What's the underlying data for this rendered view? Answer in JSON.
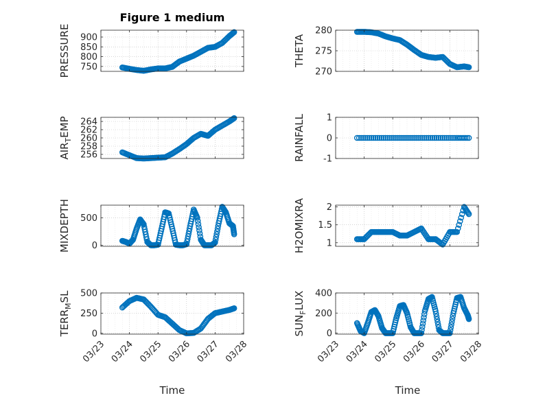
{
  "figure_title": "Figure 1 medium",
  "xlabel": "Time",
  "x_ticks": [
    "03/23",
    "03/24",
    "03/25",
    "03/26",
    "03/27",
    "03/28"
  ],
  "colors": {
    "marker": "#0072BD",
    "axis": "#262626",
    "grid": "#b9b9b9"
  },
  "chart_data": [
    {
      "type": "scatter",
      "ylabel": "PRESSURE",
      "title": "Figure 1 medium",
      "ylim": [
        725,
        935
      ],
      "yticks": [
        750,
        800,
        850,
        900
      ],
      "grid": true,
      "x": [
        "03/23 18:00",
        "03/24 00:00",
        "03/24 06:00",
        "03/24 12:00",
        "03/24 18:00",
        "03/25 00:00",
        "03/25 06:00",
        "03/25 12:00",
        "03/25 18:00",
        "03/26 00:00",
        "03/26 06:00",
        "03/26 12:00",
        "03/26 18:00",
        "03/27 00:00",
        "03/27 06:00",
        "03/27 12:00",
        "03/27 16:00"
      ],
      "y": [
        745,
        738,
        732,
        728,
        735,
        740,
        740,
        748,
        775,
        790,
        805,
        825,
        845,
        850,
        870,
        905,
        925
      ]
    },
    {
      "type": "scatter",
      "ylabel": "THETA",
      "ylim": [
        270,
        280
      ],
      "yticks": [
        270,
        275,
        280
      ],
      "grid": true,
      "x": [
        "03/23 18:00",
        "03/24 00:00",
        "03/24 06:00",
        "03/24 12:00",
        "03/24 18:00",
        "03/25 00:00",
        "03/25 06:00",
        "03/25 12:00",
        "03/25 18:00",
        "03/26 00:00",
        "03/26 06:00",
        "03/26 12:00",
        "03/26 18:00",
        "03/27 00:00",
        "03/27 06:00",
        "03/27 12:00",
        "03/27 16:00"
      ],
      "y": [
        279.6,
        279.6,
        279.5,
        279.2,
        278.5,
        278.0,
        277.6,
        276.5,
        275.2,
        274.0,
        273.5,
        273.3,
        273.5,
        271.8,
        271.0,
        271.2,
        271.0
      ]
    },
    {
      "type": "scatter",
      "ylabel": "AIR_TEMP",
      "ylim": [
        255,
        265
      ],
      "yticks": [
        256,
        258,
        260,
        262,
        264
      ],
      "grid": true,
      "x": [
        "03/23 18:00",
        "03/24 00:00",
        "03/24 06:00",
        "03/24 12:00",
        "03/24 18:00",
        "03/25 00:00",
        "03/25 06:00",
        "03/25 12:00",
        "03/25 18:00",
        "03/26 00:00",
        "03/26 06:00",
        "03/26 12:00",
        "03/26 18:00",
        "03/27 00:00",
        "03/27 06:00",
        "03/27 12:00",
        "03/27 16:00"
      ],
      "y": [
        256.5,
        255.8,
        255.1,
        255.0,
        255.1,
        255.2,
        255.3,
        256.2,
        257.3,
        258.5,
        260.0,
        261.0,
        260.5,
        262.0,
        263.0,
        264.0,
        264.8
      ]
    },
    {
      "type": "scatter",
      "ylabel": "RAINFALL",
      "ylim": [
        -1,
        1
      ],
      "yticks": [
        -1,
        0,
        1
      ],
      "grid": true,
      "x": [
        "03/23 18:00",
        "03/24 06:00",
        "03/24 18:00",
        "03/25 06:00",
        "03/25 18:00",
        "03/26 06:00",
        "03/26 18:00",
        "03/27 06:00",
        "03/27 16:00"
      ],
      "y": [
        0,
        0,
        0,
        0,
        0,
        0,
        0,
        0,
        0
      ]
    },
    {
      "type": "scatter",
      "ylabel": "MIXDEPTH",
      "ylim": [
        -20,
        730
      ],
      "yticks": [
        0,
        500
      ],
      "grid": true,
      "x": [
        "03/23 18:00",
        "03/23 21:00",
        "03/24 00:00",
        "03/24 03:00",
        "03/24 06:00",
        "03/24 09:00",
        "03/24 12:00",
        "03/24 15:00",
        "03/24 18:00",
        "03/24 21:00",
        "03/25 00:00",
        "03/25 03:00",
        "03/25 06:00",
        "03/25 09:00",
        "03/25 12:00",
        "03/25 15:00",
        "03/25 18:00",
        "03/25 21:00",
        "03/26 00:00",
        "03/26 03:00",
        "03/26 06:00",
        "03/26 09:00",
        "03/26 12:00",
        "03/26 15:00",
        "03/26 18:00",
        "03/26 21:00",
        "03/27 00:00",
        "03/27 03:00",
        "03/27 06:00",
        "03/27 09:00",
        "03/27 12:00",
        "03/27 15:00",
        "03/27 16:00"
      ],
      "y": [
        80,
        60,
        30,
        100,
        300,
        470,
        380,
        60,
        0,
        0,
        10,
        300,
        600,
        580,
        300,
        10,
        0,
        0,
        20,
        350,
        650,
        500,
        100,
        0,
        0,
        0,
        50,
        400,
        700,
        600,
        400,
        350,
        200
      ]
    },
    {
      "type": "scatter",
      "ylabel": "H2OMIXRA",
      "ylim": [
        0.9,
        2.05
      ],
      "yticks": [
        1,
        1.5,
        2
      ],
      "grid": true,
      "x": [
        "03/23 18:00",
        "03/24 00:00",
        "03/24 06:00",
        "03/24 12:00",
        "03/24 18:00",
        "03/25 00:00",
        "03/25 06:00",
        "03/25 12:00",
        "03/25 18:00",
        "03/26 00:00",
        "03/26 06:00",
        "03/26 12:00",
        "03/26 18:00",
        "03/27 00:00",
        "03/27 06:00",
        "03/27 12:00",
        "03/27 16:00"
      ],
      "y": [
        1.1,
        1.1,
        1.3,
        1.3,
        1.3,
        1.3,
        1.2,
        1.2,
        1.3,
        1.4,
        1.1,
        1.1,
        0.95,
        1.3,
        1.3,
        2.0,
        1.8
      ]
    },
    {
      "type": "scatter",
      "ylabel": "TERR_MSL",
      "ylim": [
        -10,
        500
      ],
      "yticks": [
        0,
        250,
        500
      ],
      "grid": true,
      "x": [
        "03/23 18:00",
        "03/24 00:00",
        "03/24 06:00",
        "03/24 12:00",
        "03/24 18:00",
        "03/25 00:00",
        "03/25 06:00",
        "03/25 12:00",
        "03/25 18:00",
        "03/26 00:00",
        "03/26 06:00",
        "03/26 12:00",
        "03/26 18:00",
        "03/27 00:00",
        "03/27 06:00",
        "03/27 12:00",
        "03/27 16:00"
      ],
      "y": [
        320,
        400,
        440,
        420,
        330,
        230,
        200,
        120,
        40,
        0,
        5,
        60,
        180,
        250,
        270,
        290,
        310
      ]
    },
    {
      "type": "scatter",
      "ylabel": "SUN_FLUX",
      "ylim": [
        -10,
        400
      ],
      "yticks": [
        0,
        200,
        400
      ],
      "grid": true,
      "x": [
        "03/23 18:00",
        "03/23 21:00",
        "03/24 00:00",
        "03/24 03:00",
        "03/24 06:00",
        "03/24 09:00",
        "03/24 12:00",
        "03/24 15:00",
        "03/24 18:00",
        "03/24 21:00",
        "03/25 00:00",
        "03/25 03:00",
        "03/25 06:00",
        "03/25 09:00",
        "03/25 12:00",
        "03/25 15:00",
        "03/25 18:00",
        "03/25 21:00",
        "03/26 00:00",
        "03/26 03:00",
        "03/26 06:00",
        "03/26 09:00",
        "03/26 12:00",
        "03/26 15:00",
        "03/26 18:00",
        "03/26 21:00",
        "03/27 00:00",
        "03/27 03:00",
        "03/27 06:00",
        "03/27 09:00",
        "03/27 12:00",
        "03/27 15:00",
        "03/27 16:00"
      ],
      "y": [
        100,
        20,
        0,
        100,
        210,
        230,
        170,
        50,
        0,
        0,
        0,
        150,
        270,
        280,
        200,
        60,
        0,
        0,
        0,
        220,
        340,
        360,
        220,
        30,
        0,
        0,
        0,
        200,
        350,
        360,
        250,
        180,
        140
      ]
    }
  ]
}
